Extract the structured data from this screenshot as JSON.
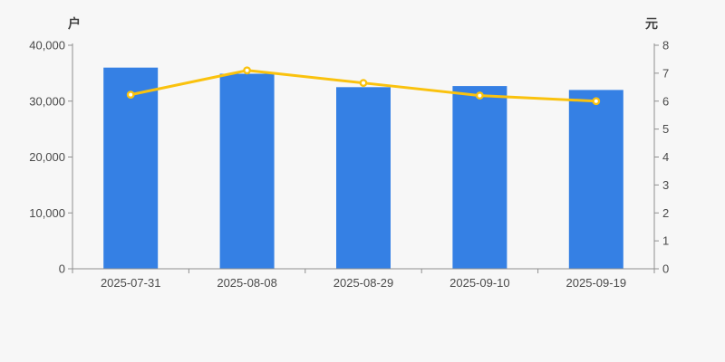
{
  "chart_data": {
    "type": "bar+line",
    "title": "",
    "categories": [
      "2025-07-31",
      "2025-08-08",
      "2025-08-29",
      "2025-09-10",
      "2025-09-19"
    ],
    "series": [
      {
        "name": "bar-series",
        "type": "bar",
        "axis": "left",
        "unit": "户",
        "values": [
          36000,
          34900,
          32500,
          32700,
          32000
        ],
        "color": "#3580e4"
      },
      {
        "name": "line-series",
        "type": "line",
        "axis": "right",
        "unit": "元",
        "values": [
          6.23,
          7.1,
          6.65,
          6.2,
          6.0
        ],
        "color": "#fac20e",
        "point_fill": "#ffffff"
      }
    ],
    "left_axis": {
      "unit": "户",
      "min": 0,
      "max": 40000,
      "tick_step": 10000,
      "tick_labels": [
        "0",
        "10,000",
        "20,000",
        "30,000",
        "40,000"
      ]
    },
    "right_axis": {
      "unit": "元",
      "min": 0,
      "max": 8,
      "tick_step": 1,
      "tick_labels": [
        "0",
        "1",
        "2",
        "3",
        "4",
        "5",
        "6",
        "7",
        "8"
      ]
    },
    "grid": "off",
    "legend": "none"
  },
  "colors": {
    "background": "#f7f7f7",
    "axis_line": "#8f8f8f",
    "axis_text": "#4a4a4a",
    "unit_text": "#404040",
    "bar": "#3580e4",
    "line": "#fac20e",
    "point_fill": "#ffffff"
  }
}
